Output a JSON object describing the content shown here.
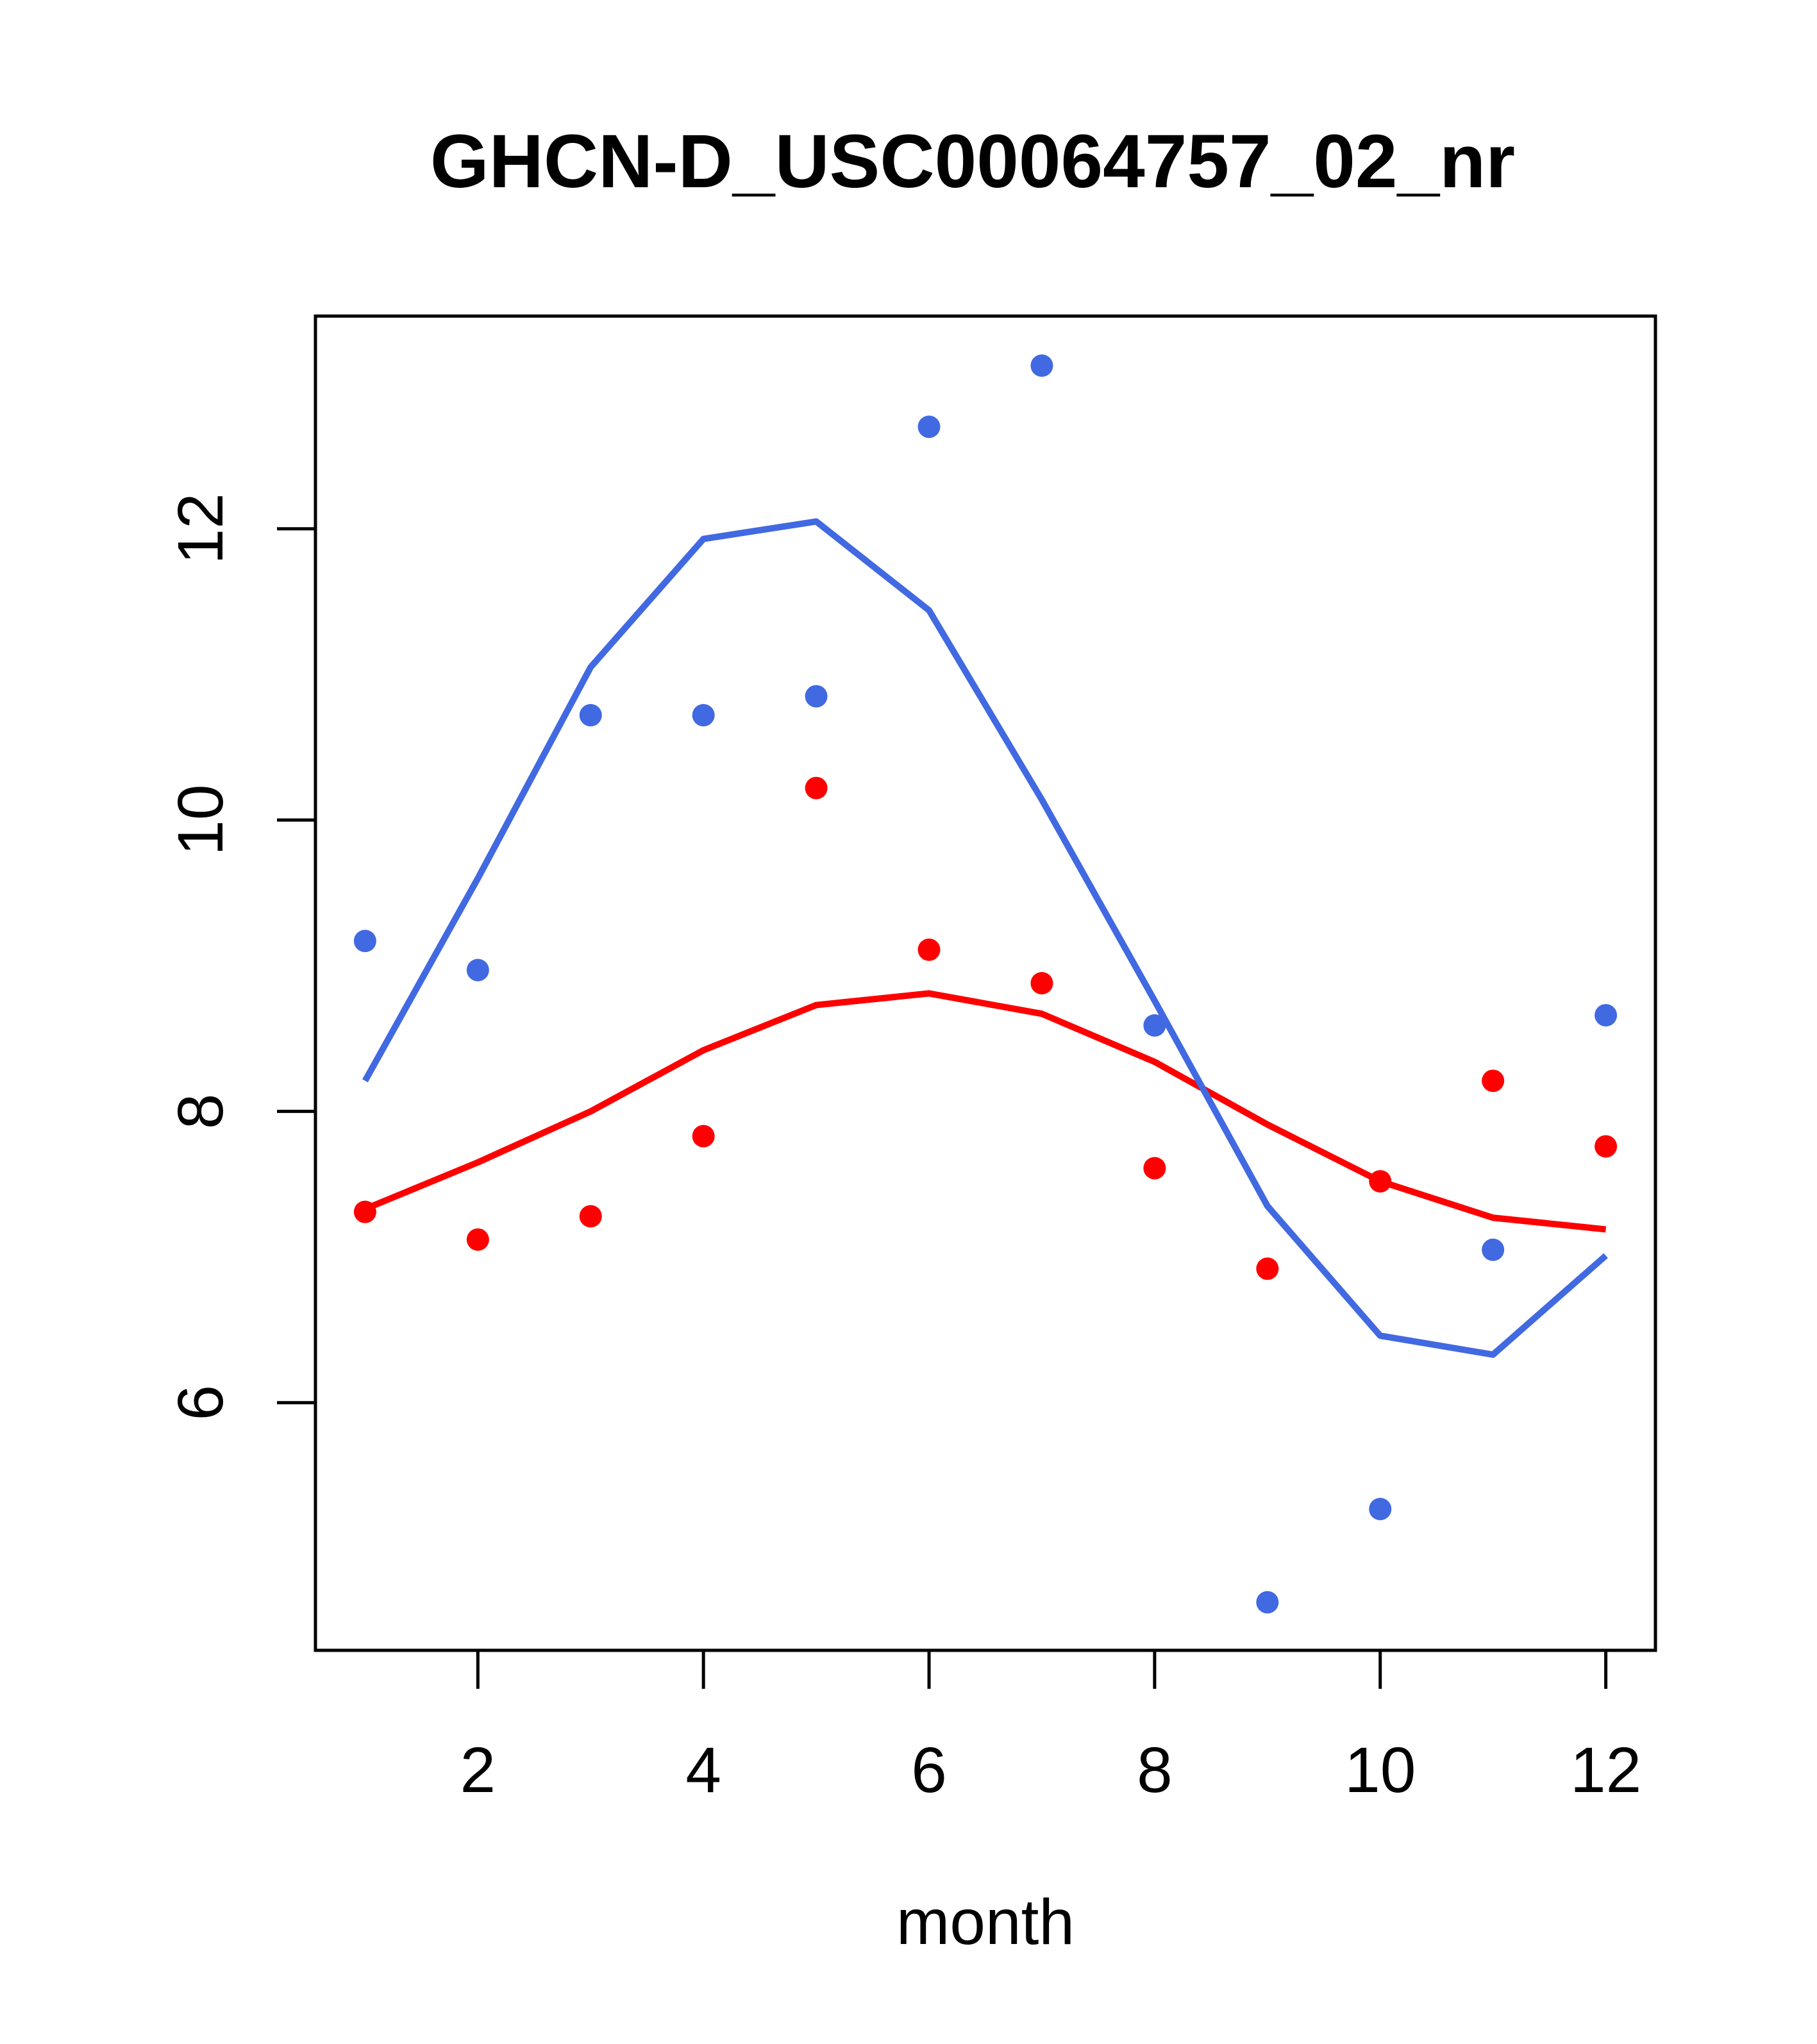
{
  "window": {
    "background": "#FFFFFF"
  },
  "colors": {
    "blue": "#4169E1",
    "red": "#FF0000",
    "axis": "#000000",
    "text": "#000000",
    "background": "#FFFFFF"
  },
  "chart_data": {
    "type": "scatter",
    "title": "GHCN-D_USC00064757_02_nr",
    "xlabel": "month",
    "ylabel": "",
    "x": [
      1,
      2,
      3,
      4,
      5,
      6,
      7,
      8,
      9,
      10,
      11,
      12
    ],
    "xlim": [
      0.56,
      12.44
    ],
    "ylim": [
      4.3,
      13.46
    ],
    "xticks": [
      2,
      4,
      6,
      8,
      10,
      12
    ],
    "yticks": [
      6,
      8,
      10,
      12
    ],
    "grid": false,
    "legend_position": "none",
    "box": true,
    "series": [
      {
        "name": "red smooth line",
        "kind": "line",
        "color": "red",
        "values": [
          7.33,
          7.65,
          8.0,
          8.42,
          8.73,
          8.81,
          8.67,
          8.34,
          7.91,
          7.52,
          7.27,
          7.19
        ]
      },
      {
        "name": "blue smooth line",
        "kind": "line",
        "color": "blue",
        "values": [
          8.21,
          9.6,
          11.05,
          11.93,
          12.05,
          11.44,
          10.14,
          8.76,
          7.35,
          6.46,
          6.33,
          7.01
        ]
      },
      {
        "name": "blue points",
        "kind": "points",
        "color": "blue",
        "values": [
          9.17,
          8.97,
          10.72,
          10.72,
          10.85,
          12.7,
          13.12,
          8.59,
          4.63,
          5.27,
          7.05,
          8.66
        ]
      },
      {
        "name": "red points",
        "kind": "points",
        "color": "red",
        "values": [
          7.31,
          7.12,
          7.28,
          7.83,
          10.22,
          9.11,
          8.88,
          7.61,
          6.92,
          7.52,
          8.21,
          7.76
        ]
      }
    ]
  }
}
